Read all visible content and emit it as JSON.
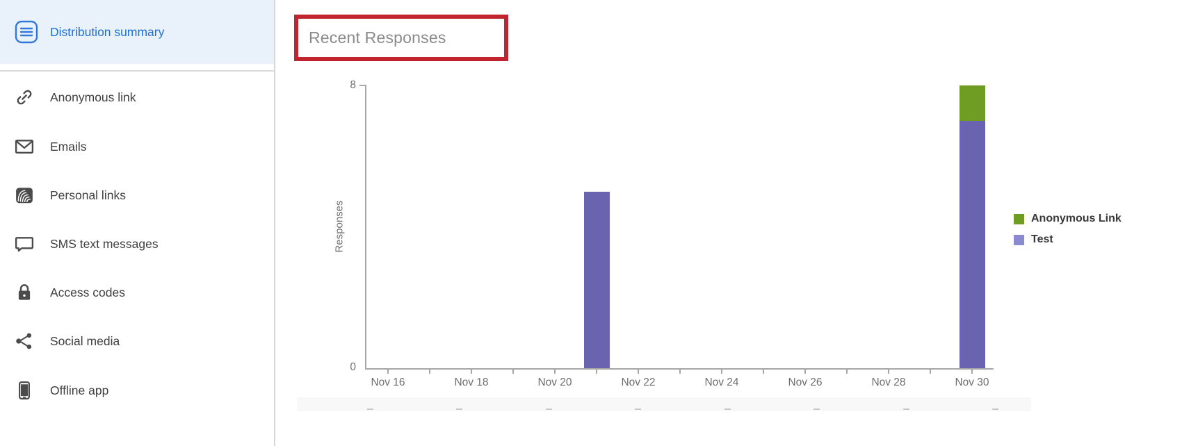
{
  "colors": {
    "accent_blue": "#1b6fd6",
    "annotation_red": "#c0242f",
    "bar_purple": "#6a63b0",
    "bar_green": "#6f9d23",
    "legend_test_swatch": "#8c8ace"
  },
  "sidebar": {
    "active_item": {
      "label": "Distribution summary",
      "icon": "menu-icon"
    },
    "items": [
      {
        "label": "Anonymous link",
        "icon": "link-icon"
      },
      {
        "label": "Emails",
        "icon": "envelope-icon"
      },
      {
        "label": "Personal links",
        "icon": "fingerprint-icon"
      },
      {
        "label": "SMS text messages",
        "icon": "speech-bubble-icon"
      },
      {
        "label": "Access codes",
        "icon": "lock-icon"
      },
      {
        "label": "Social media",
        "icon": "share-icon"
      },
      {
        "label": "Offline app",
        "icon": "mobile-icon"
      }
    ]
  },
  "main": {
    "section_title": "Recent Responses"
  },
  "chart_data": {
    "type": "bar",
    "stacked": true,
    "title": "Recent Responses",
    "xlabel": "",
    "ylabel": "Responses",
    "ylim": [
      0,
      8
    ],
    "y_ticks": [
      0,
      8
    ],
    "x_range": [
      "Nov 16",
      "Nov 30"
    ],
    "x_tick_labels": [
      "Nov 16",
      "Nov 18",
      "Nov 20",
      "Nov 22",
      "Nov 24",
      "Nov 26",
      "Nov 28",
      "Nov 30"
    ],
    "grid": false,
    "legend_position": "right",
    "series": [
      {
        "name": "Test",
        "color": "#6a63b0",
        "points": [
          {
            "date": "Nov 21",
            "value": 5
          },
          {
            "date": "Nov 30",
            "value": 7
          }
        ]
      },
      {
        "name": "Anonymous Link",
        "color": "#6f9d23",
        "points": [
          {
            "date": "Nov 30",
            "value": 1
          }
        ]
      }
    ],
    "legend": [
      {
        "label": "Anonymous Link",
        "color": "#6f9d23"
      },
      {
        "label": "Test",
        "color": "#8c8ace"
      }
    ]
  }
}
